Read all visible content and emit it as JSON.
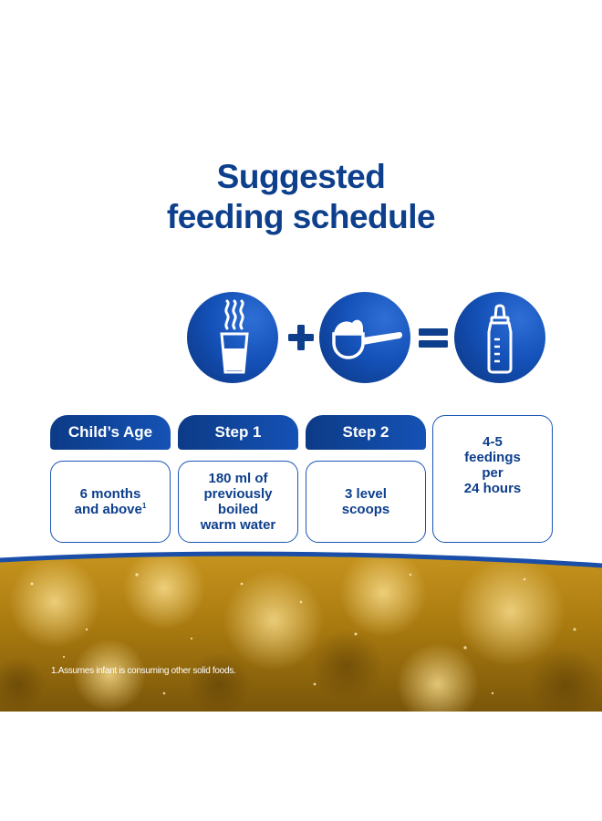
{
  "title": {
    "line1": "Suggested",
    "line2": "feeding schedule"
  },
  "icons": [
    "glass-of-warm-water-icon",
    "scoop-of-powder-icon",
    "baby-bottle-icon"
  ],
  "operators": {
    "plus": "+",
    "equals": "="
  },
  "columns": [
    {
      "header": "Child’s Age",
      "value": "6 months\nand above",
      "superscript": "1"
    },
    {
      "header": "Step 1",
      "value": "180 ml of\npreviously boiled\nwarm water"
    },
    {
      "header": "Step 2",
      "value": "3 level\nscoops"
    },
    {
      "header": "",
      "value": "4-5\nfeedings\nper\n24 hours"
    }
  ],
  "footnote": "1.Assumes infant is consuming other solid foods.",
  "colors": {
    "brand_blue": "#0d3f8c",
    "accent_blue": "#1552b5",
    "gold": "#b8891e"
  }
}
